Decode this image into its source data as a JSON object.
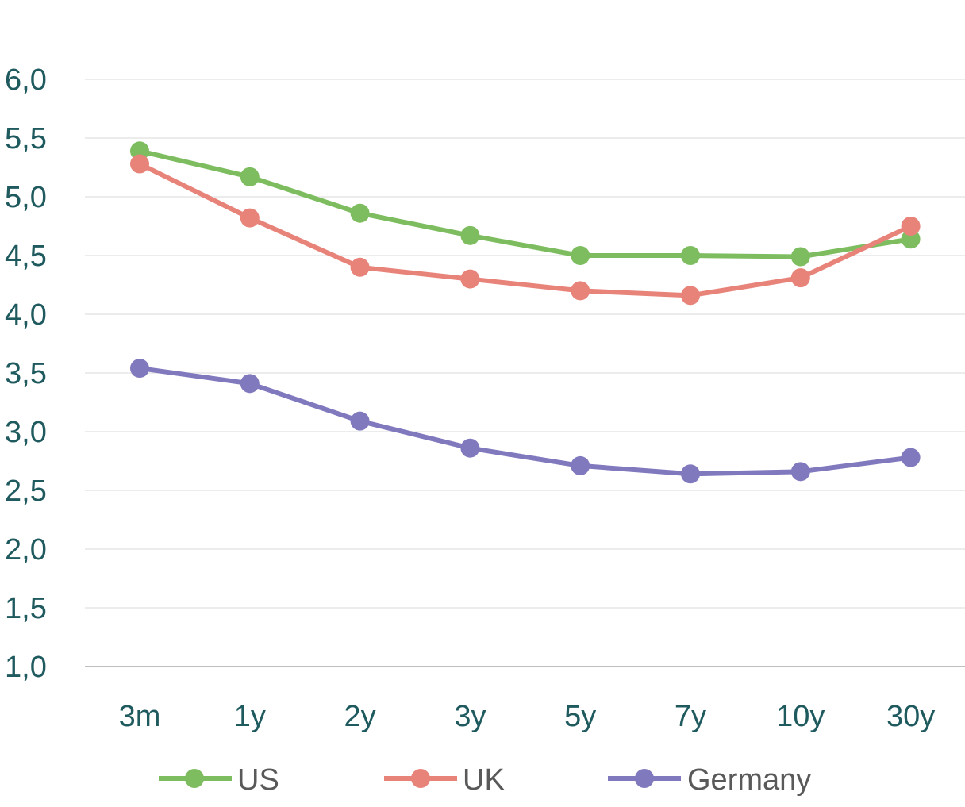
{
  "chart_data": {
    "type": "line",
    "title": "",
    "xlabel": "",
    "ylabel": "",
    "categories": [
      "3m",
      "1y",
      "2y",
      "3y",
      "5y",
      "7y",
      "10y",
      "30y"
    ],
    "ylim": [
      1.0,
      6.0
    ],
    "yticks": [
      "1,0",
      "1,5",
      "2,0",
      "2,5",
      "3,0",
      "3,5",
      "4,0",
      "4,5",
      "5,0",
      "5,5",
      "6,0"
    ],
    "grid": true,
    "legend_position": "bottom",
    "series": [
      {
        "name": "US",
        "color": "#7dbd5f",
        "values": [
          5.39,
          5.17,
          4.86,
          4.67,
          4.5,
          4.5,
          4.49,
          4.64
        ]
      },
      {
        "name": "UK",
        "color": "#e8837a",
        "values": [
          5.28,
          4.82,
          4.4,
          4.3,
          4.2,
          4.16,
          4.31,
          4.75
        ]
      },
      {
        "name": "Germany",
        "color": "#8079bd",
        "values": [
          3.54,
          3.41,
          3.09,
          2.86,
          2.71,
          2.64,
          2.66,
          2.78
        ]
      }
    ]
  }
}
